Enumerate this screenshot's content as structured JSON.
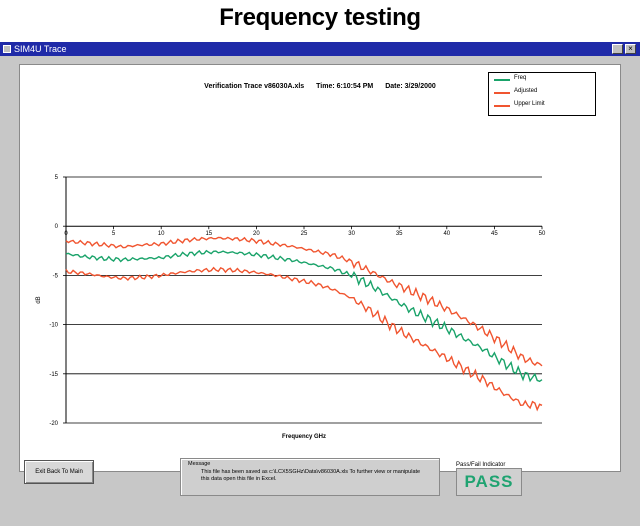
{
  "page_title": "Frequency testing",
  "window": {
    "title": "SIM4U Trace",
    "close_glyph": "×"
  },
  "plot": {
    "verification_label": "Verification Trace",
    "file_name": "v86030A.xls",
    "time_label": "Time:",
    "time_value": "6:10:54 PM",
    "date_label": "Date:",
    "date_value": "3/29/2000"
  },
  "legend": [
    "Freq",
    "Adjusted",
    "Upper Limit"
  ],
  "colors": {
    "green": "#1aa36a",
    "red": "#f05530",
    "titlebar": "#1f2aa8"
  },
  "chart_data": {
    "type": "line",
    "xlabel": "Frequency GHz",
    "ylabel": "dB",
    "xlim": [
      0,
      50
    ],
    "ylim": [
      -20,
      5
    ],
    "x_ticks": [
      0,
      5,
      10,
      15,
      20,
      25,
      30,
      35,
      40,
      45,
      50
    ],
    "y_ticks": [
      5,
      0,
      -5,
      -10,
      -15,
      -20
    ],
    "series": [
      {
        "name": "Freq",
        "color": "#1aa36a",
        "x": [
          0,
          2,
          4,
          6,
          8,
          10,
          12,
          14,
          16,
          18,
          20,
          22,
          24,
          26,
          28,
          30,
          32,
          34,
          36,
          38,
          40,
          42,
          44,
          46,
          48,
          50
        ],
        "y": [
          -2.8,
          -3.1,
          -3.3,
          -3.4,
          -3.3,
          -3.2,
          -2.9,
          -2.7,
          -2.6,
          -2.7,
          -2.9,
          -3.2,
          -3.5,
          -3.9,
          -4.3,
          -5.0,
          -6.0,
          -7.2,
          -8.4,
          -9.4,
          -10.4,
          -11.5,
          -12.6,
          -13.9,
          -15.1,
          -15.6
        ]
      },
      {
        "name": "Adjusted",
        "color": "#f05530",
        "x": [
          0,
          2,
          4,
          6,
          8,
          10,
          12,
          14,
          16,
          18,
          20,
          22,
          24,
          26,
          28,
          30,
          32,
          34,
          36,
          38,
          40,
          42,
          44,
          46,
          48,
          50
        ],
        "y": [
          -4.6,
          -4.8,
          -5.1,
          -5.3,
          -5.2,
          -5.0,
          -4.7,
          -4.5,
          -4.4,
          -4.5,
          -4.7,
          -5.0,
          -5.4,
          -5.8,
          -6.4,
          -7.3,
          -8.6,
          -10.0,
          -11.2,
          -12.3,
          -13.4,
          -14.6,
          -15.7,
          -17.0,
          -18.1,
          -18.2
        ]
      },
      {
        "name": "Upper Limit",
        "color": "#f05530",
        "x": [
          0,
          2,
          4,
          6,
          8,
          10,
          12,
          14,
          16,
          18,
          20,
          22,
          24,
          26,
          28,
          30,
          32,
          34,
          36,
          38,
          40,
          42,
          44,
          46,
          48,
          50
        ],
        "y": [
          -1.5,
          -1.7,
          -1.9,
          -2.1,
          -1.9,
          -1.8,
          -1.5,
          -1.3,
          -1.2,
          -1.3,
          -1.5,
          -1.8,
          -2.1,
          -2.5,
          -2.9,
          -3.6,
          -4.6,
          -5.6,
          -6.5,
          -7.4,
          -8.4,
          -9.5,
          -10.7,
          -12.0,
          -13.4,
          -14.2
        ]
      }
    ]
  },
  "exit_button": "Exit Back To Main",
  "message": {
    "caption": "Message",
    "text": "This file has been saved as c:\\LCX5SGHz\\Data\\v86030A.xls   To further view or manipulate this data open this file in Excel."
  },
  "pass_fail": {
    "caption": "Pass/Fail Indicator",
    "value": "PASS"
  }
}
